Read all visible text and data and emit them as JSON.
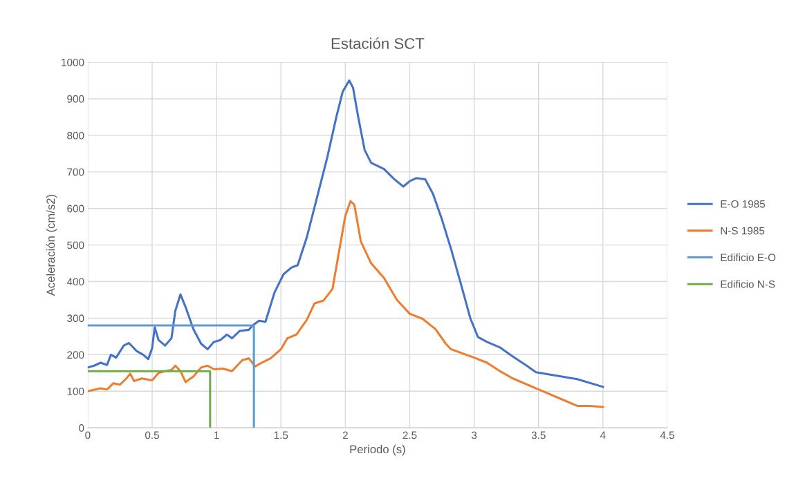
{
  "chart_data": {
    "type": "line",
    "title": "Estación SCT",
    "xlabel": "Periodo (s)",
    "ylabel": "Aceleración (cm/s2)",
    "xlim": [
      0,
      4.5
    ],
    "xticks": [
      0,
      0.5,
      1,
      1.5,
      2,
      2.5,
      3,
      3.5,
      4,
      4.5
    ],
    "ylim": [
      0,
      1000
    ],
    "yticks": [
      0,
      100,
      200,
      300,
      400,
      500,
      600,
      700,
      800,
      900,
      1000
    ],
    "grid": true,
    "legend": "right",
    "marker": "none",
    "line_style": "solid",
    "series": [
      {
        "name": "E-O 1985",
        "color": "#4472c4",
        "x": [
          0,
          0.05,
          0.1,
          0.15,
          0.18,
          0.22,
          0.28,
          0.32,
          0.38,
          0.43,
          0.47,
          0.5,
          0.52,
          0.55,
          0.6,
          0.65,
          0.68,
          0.72,
          0.76,
          0.82,
          0.88,
          0.93,
          0.98,
          1.03,
          1.08,
          1.12,
          1.18,
          1.25,
          1.28,
          1.33,
          1.38,
          1.45,
          1.52,
          1.58,
          1.63,
          1.7,
          1.78,
          1.86,
          1.93,
          1.98,
          2.03,
          2.06,
          2.1,
          2.15,
          2.2,
          2.3,
          2.38,
          2.45,
          2.5,
          2.55,
          2.62,
          2.68,
          2.75,
          2.82,
          2.9,
          2.97,
          3.03,
          3.1,
          3.2,
          3.3,
          3.4,
          3.48,
          3.6,
          3.8,
          4.0
        ],
        "values": [
          165,
          170,
          178,
          172,
          200,
          192,
          225,
          232,
          210,
          200,
          188,
          218,
          275,
          240,
          225,
          245,
          320,
          365,
          330,
          270,
          230,
          215,
          235,
          240,
          255,
          245,
          265,
          268,
          280,
          293,
          290,
          370,
          420,
          438,
          445,
          520,
          630,
          740,
          850,
          920,
          950,
          930,
          850,
          760,
          725,
          708,
          680,
          660,
          675,
          683,
          680,
          640,
          570,
          490,
          390,
          300,
          248,
          235,
          220,
          195,
          172,
          152,
          145,
          133,
          112
        ]
      },
      {
        "name": "N-S 1985",
        "color": "#ed7d31",
        "x": [
          0,
          0.1,
          0.15,
          0.2,
          0.25,
          0.3,
          0.33,
          0.36,
          0.42,
          0.5,
          0.55,
          0.6,
          0.65,
          0.68,
          0.72,
          0.76,
          0.82,
          0.88,
          0.93,
          0.98,
          1.05,
          1.12,
          1.2,
          1.25,
          1.3,
          1.35,
          1.42,
          1.5,
          1.55,
          1.62,
          1.7,
          1.76,
          1.83,
          1.9,
          1.95,
          2.0,
          2.04,
          2.07,
          2.12,
          2.2,
          2.3,
          2.4,
          2.5,
          2.6,
          2.7,
          2.78,
          2.82,
          3.0,
          3.1,
          3.2,
          3.3,
          3.5,
          3.7,
          3.8,
          3.9,
          4.0
        ],
        "values": [
          100,
          108,
          105,
          122,
          118,
          135,
          148,
          128,
          135,
          130,
          150,
          155,
          158,
          170,
          155,
          125,
          140,
          165,
          170,
          160,
          162,
          155,
          185,
          190,
          168,
          178,
          190,
          215,
          245,
          255,
          295,
          340,
          348,
          380,
          480,
          580,
          620,
          610,
          510,
          450,
          410,
          350,
          312,
          298,
          270,
          230,
          215,
          192,
          178,
          155,
          135,
          105,
          75,
          60,
          60,
          57
        ]
      },
      {
        "name": "Edificio E-O",
        "color": "#5b9bd5",
        "x": [
          0,
          1.29,
          1.29
        ],
        "values": [
          280,
          280,
          0
        ]
      },
      {
        "name": "Edificio N-S",
        "color": "#70ad47",
        "x": [
          0,
          0.95,
          0.95
        ],
        "values": [
          155,
          155,
          0
        ]
      }
    ]
  }
}
